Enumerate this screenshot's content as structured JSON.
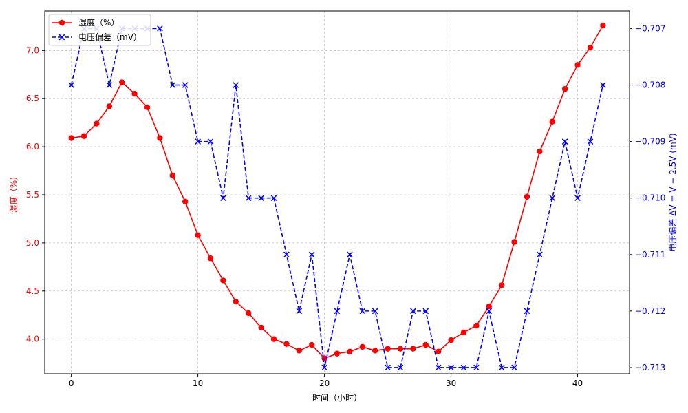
{
  "chart_data": {
    "type": "line",
    "xlabel": "时间（小时）",
    "xlim": [
      -2.1,
      44.1
    ],
    "xticks": [
      0,
      10,
      20,
      30,
      40
    ],
    "grid": true,
    "legend_position": "top-left",
    "axes": {
      "left": {
        "label": "湿度（%）",
        "color": "#ff0000",
        "ylim": [
          3.64,
          7.41
        ],
        "ticks": [
          4.0,
          4.5,
          5.0,
          5.5,
          6.0,
          6.5,
          7.0
        ],
        "tick_labels": [
          "4.0",
          "4.5",
          "5.0",
          "5.5",
          "6.0",
          "6.5",
          "7.0"
        ]
      },
      "right": {
        "label": "电压偏差  ΔV = V − 2.5V (mV)",
        "color": "#0000ff",
        "ylim": [
          -0.71311,
          -0.70669
        ],
        "ticks": [
          -0.713,
          -0.712,
          -0.711,
          -0.71,
          -0.709,
          -0.708,
          -0.707
        ],
        "tick_labels": [
          "−0.713",
          "−0.712",
          "−0.711",
          "−0.710",
          "−0.709",
          "−0.708",
          "−0.707"
        ]
      }
    },
    "series": [
      {
        "name": "湿度（%）",
        "axis": "left",
        "color": "#ff0000",
        "linestyle": "solid",
        "marker": "circle",
        "x": [
          0,
          1,
          2,
          3,
          4,
          5,
          6,
          7,
          8,
          9,
          10,
          11,
          12,
          13,
          14,
          15,
          16,
          17,
          18,
          19,
          20,
          21,
          22,
          23,
          24,
          25,
          26,
          27,
          28,
          29,
          30,
          31,
          32,
          33,
          34,
          35,
          36,
          37,
          38,
          39,
          40,
          41,
          42
        ],
        "values": [
          6.09,
          6.11,
          6.24,
          6.42,
          6.67,
          6.55,
          6.41,
          6.09,
          5.7,
          5.43,
          5.08,
          4.84,
          4.61,
          4.39,
          4.27,
          4.12,
          4.0,
          3.95,
          3.88,
          3.94,
          3.8,
          3.85,
          3.87,
          3.92,
          3.88,
          3.9,
          3.9,
          3.9,
          3.94,
          3.87,
          3.99,
          4.07,
          4.14,
          4.34,
          4.56,
          5.01,
          5.48,
          5.95,
          6.26,
          6.6,
          6.85,
          7.03,
          7.26
        ]
      },
      {
        "name": "电压偏差（mV）",
        "axis": "right",
        "color": "#0000ff",
        "linestyle": "dashed",
        "marker": "x",
        "x": [
          0,
          1,
          2,
          3,
          4,
          5,
          6,
          7,
          8,
          9,
          10,
          11,
          12,
          13,
          14,
          15,
          16,
          17,
          18,
          19,
          20,
          21,
          22,
          23,
          24,
          25,
          26,
          27,
          28,
          29,
          30,
          31,
          32,
          33,
          34,
          35,
          36,
          37,
          38,
          39,
          40,
          41,
          42
        ],
        "values": [
          -0.708,
          -0.707,
          -0.707,
          -0.708,
          -0.707,
          -0.707,
          -0.707,
          -0.707,
          -0.708,
          -0.708,
          -0.709,
          -0.709,
          -0.71,
          -0.708,
          -0.71,
          -0.71,
          -0.71,
          -0.711,
          -0.712,
          -0.711,
          -0.713,
          -0.712,
          -0.711,
          -0.712,
          -0.712,
          -0.713,
          -0.713,
          -0.712,
          -0.712,
          -0.713,
          -0.713,
          -0.713,
          -0.713,
          -0.712,
          -0.713,
          -0.713,
          -0.712,
          -0.711,
          -0.71,
          -0.709,
          -0.71,
          -0.709,
          -0.708
        ]
      }
    ]
  }
}
